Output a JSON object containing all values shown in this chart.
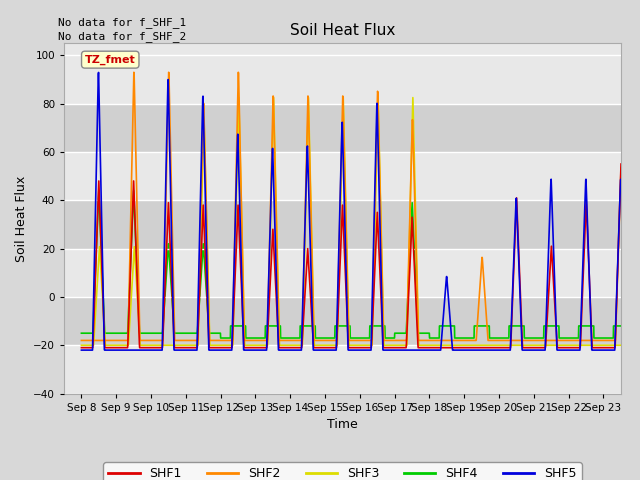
{
  "title": "Soil Heat Flux",
  "xlabel": "Time",
  "ylabel": "Soil Heat Flux",
  "ylim": [
    -40,
    105
  ],
  "yticks": [
    -40,
    -20,
    0,
    20,
    40,
    60,
    80,
    100
  ],
  "note_line1": "No data for f_SHF_1",
  "note_line2": "No data for f_SHF_2",
  "tz_label": "TZ_fmet",
  "legend_labels": [
    "SHF1",
    "SHF2",
    "SHF3",
    "SHF4",
    "SHF5"
  ],
  "legend_colors": [
    "#dd0000",
    "#ff8800",
    "#dddd00",
    "#00cc00",
    "#0000dd"
  ],
  "line_colors": [
    "#dd0000",
    "#ff8800",
    "#dddd00",
    "#00cc00",
    "#0000dd"
  ],
  "bg_color": "#d8d8d8",
  "plot_bg_light": "#e8e8e8",
  "plot_bg_dark": "#d0d0d0",
  "xtick_labels": [
    "Sep 8",
    "Sep 9",
    "Sep 10",
    "Sep 11",
    "Sep 12",
    "Sep 13",
    "Sep 14",
    "Sep 15",
    "Sep 16",
    "Sep 17",
    "Sep 18",
    "Sep 19",
    "Sep 20",
    "Sep 21",
    "Sep 22",
    "Sep 23"
  ],
  "xtick_positions": [
    8,
    9,
    10,
    11,
    12,
    13,
    14,
    15,
    16,
    17,
    18,
    19,
    20,
    21,
    22,
    23
  ],
  "shf1_peaks": [
    48,
    48,
    39,
    38,
    38,
    28,
    20,
    38,
    35,
    33,
    0,
    0,
    41,
    21,
    40,
    55
  ],
  "shf2_peaks": [
    0,
    95,
    95,
    82,
    95,
    85,
    85,
    85,
    87,
    75,
    0,
    17,
    0,
    0,
    0,
    58
  ],
  "shf3_peaks": [
    21,
    21,
    0,
    75,
    83,
    83,
    83,
    83,
    83,
    83,
    0,
    0,
    0,
    0,
    0,
    0
  ],
  "shf4_flat": -12,
  "shf4_peaks": [
    44,
    44,
    22,
    22,
    0,
    0,
    0,
    0,
    0,
    39,
    0,
    0,
    0,
    0,
    0,
    0
  ],
  "shf5_peaks": [
    95,
    0,
    92,
    85,
    69,
    63,
    64,
    74,
    82,
    0,
    9,
    0,
    42,
    50,
    50,
    50
  ],
  "night_val_shf1": -21,
  "night_val_shf2": -18,
  "night_val_shf3": -20,
  "night_val_shf4": -12,
  "night_val_shf5": -22
}
